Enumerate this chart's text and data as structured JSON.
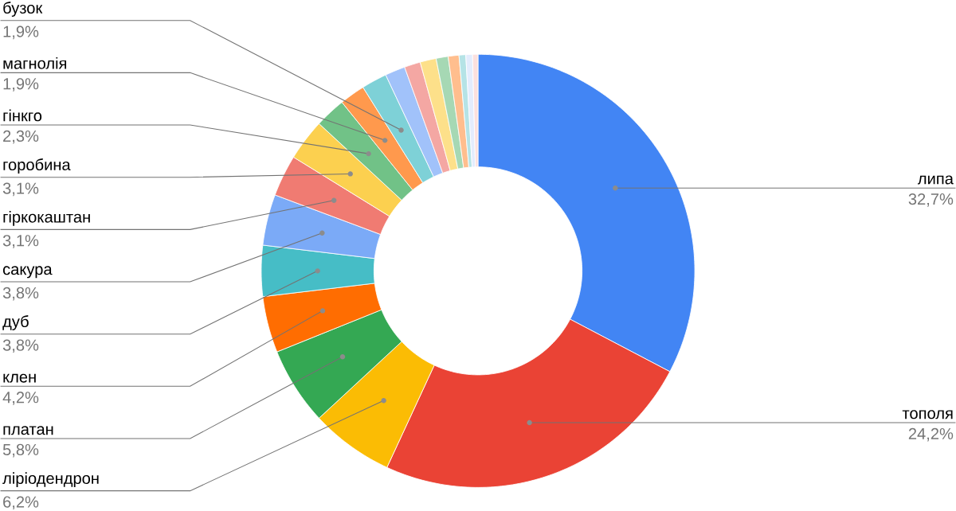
{
  "chart_data": {
    "type": "donut",
    "categories": [
      "липа",
      "тополя",
      "ліріодендрон",
      "платан",
      "клен",
      "дуб",
      "сакура",
      "гіркокаштан",
      "горобина",
      "гінкго",
      "магнолія",
      "бузок",
      null,
      null,
      null,
      null,
      null,
      null,
      null,
      null
    ],
    "values": [
      32.7,
      24.2,
      6.2,
      5.8,
      4.2,
      3.8,
      3.8,
      3.1,
      3.1,
      2.3,
      1.9,
      1.9,
      1.5,
      1.2,
      1.2,
      0.9,
      0.8,
      0.5,
      0.5,
      0.4
    ],
    "value_labels": [
      "32,7%",
      "24,2%",
      "6,2%",
      "5,8%",
      "4,2%",
      "3,8%",
      "3,8%",
      "3,1%",
      "3,1%",
      "2,3%",
      "1,9%",
      "1,9%",
      null,
      null,
      null,
      null,
      null,
      null,
      null,
      null
    ],
    "colors": [
      "#4285f4",
      "#ea4335",
      "#fbbc04",
      "#34a853",
      "#ff6d01",
      "#46bdc6",
      "#7baaf7",
      "#f07b72",
      "#fcd04f",
      "#71c287",
      "#ff994d",
      "#7ed1d7",
      "#a1c2fa",
      "#f4a7a3",
      "#fde08a",
      "#a6d8b4",
      "#ffbe8e",
      "#b5e3e6",
      "#e3ecfd",
      "#fbe0de"
    ]
  }
}
